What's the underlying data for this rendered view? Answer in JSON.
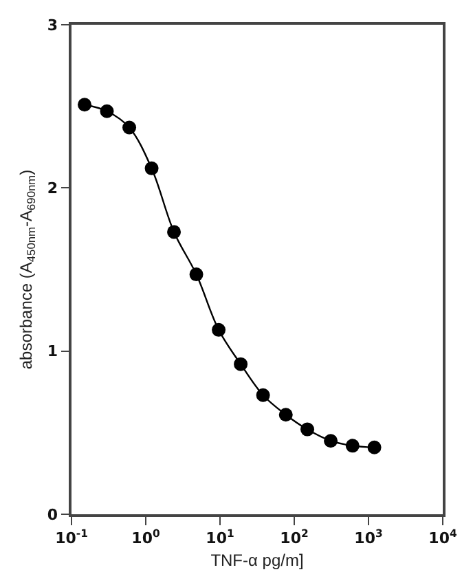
{
  "chart_data": {
    "type": "line",
    "xlabel": "TNF-α pg/m]",
    "ylabel": "absorbance (A$_{450nm}$-A$_{690nm}$)",
    "x": [
      0.15,
      0.3,
      0.6,
      1.2,
      2.4,
      4.8,
      9.6,
      19,
      38,
      77,
      150,
      310,
      610,
      1200
    ],
    "series": [
      {
        "color": "#000000",
        "values": [
          2.51,
          2.47,
          2.37,
          2.12,
          1.73,
          1.47,
          1.13,
          0.92,
          0.73,
          0.61,
          0.52,
          0.45,
          0.42,
          0.41
        ]
      }
    ],
    "log": "x",
    "marker": "circle",
    "line_style": "solid",
    "xlim": [
      0.1,
      10000
    ],
    "xticks": [
      {
        "value": 0.1,
        "label": "10$^{-1}$"
      },
      {
        "value": 1,
        "label": "10$^{0}$"
      },
      {
        "value": 10,
        "label": "10$^{1}$"
      },
      {
        "value": 100,
        "label": "10$^{2}$"
      },
      {
        "value": 1000,
        "label": "10$^{3}$"
      },
      {
        "value": 10000,
        "label": "10$^{4}$"
      }
    ],
    "ylim": [
      0,
      3
    ],
    "yticks": [
      0,
      1,
      2,
      3
    ]
  }
}
